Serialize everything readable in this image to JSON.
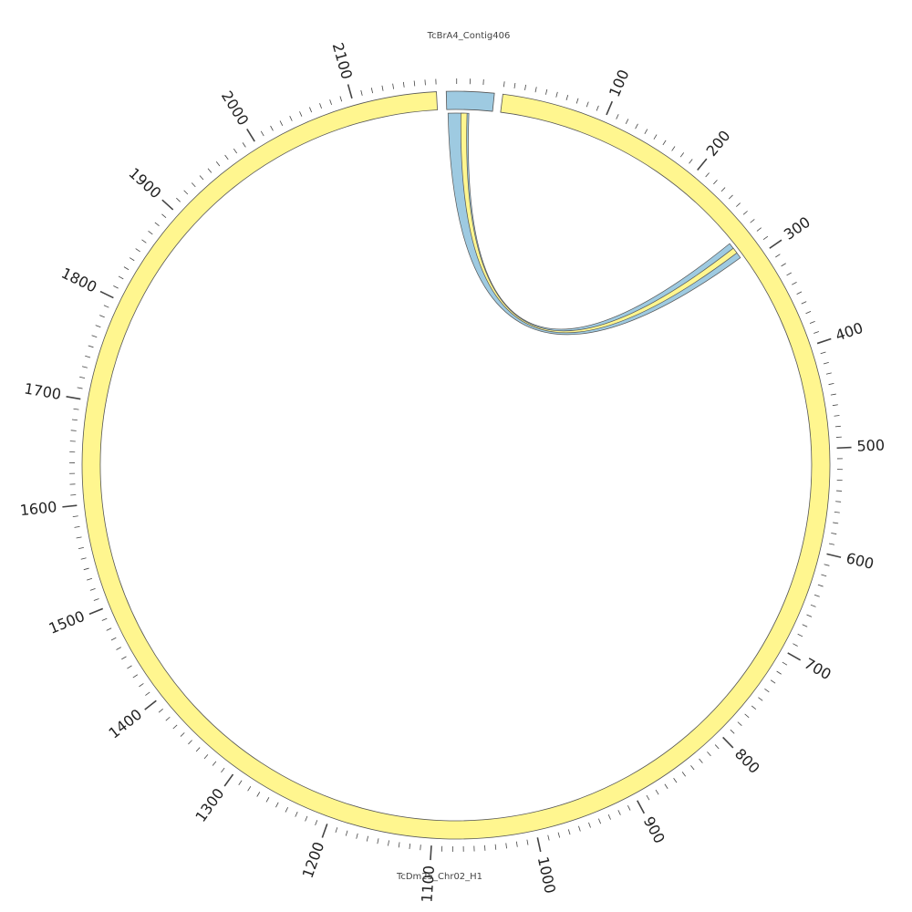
{
  "sequences": {
    "main": {
      "name": "TcDm25_Chr02_H1",
      "length": 2180,
      "color": "#fff68f",
      "tick_labels": [
        "100",
        "200",
        "300",
        "400",
        "500",
        "600",
        "700",
        "800",
        "900",
        "1000",
        "1100",
        "1200",
        "1300",
        "1400",
        "1500",
        "1600",
        "1700",
        "1800",
        "1900",
        "2000",
        "2100"
      ]
    },
    "contig": {
      "name": "TcBrA4_Contig406",
      "color": "#9ecae1",
      "span_degrees": 7.4,
      "tick_count": 3
    }
  },
  "links": [
    {
      "name": "outer-link",
      "color": "#9ecae1",
      "source": "TcBrA4_Contig406",
      "target": "TcDm25_Chr02_H1",
      "target_range": [
        273,
        291
      ]
    },
    {
      "name": "inner-link",
      "color": "#fff68f",
      "source": "TcBrA4_Contig406",
      "target": "TcDm25_Chr02_H1",
      "target_range": [
        279,
        285
      ]
    }
  ],
  "colors": {
    "stroke": "#555555",
    "tick": "#444444"
  }
}
